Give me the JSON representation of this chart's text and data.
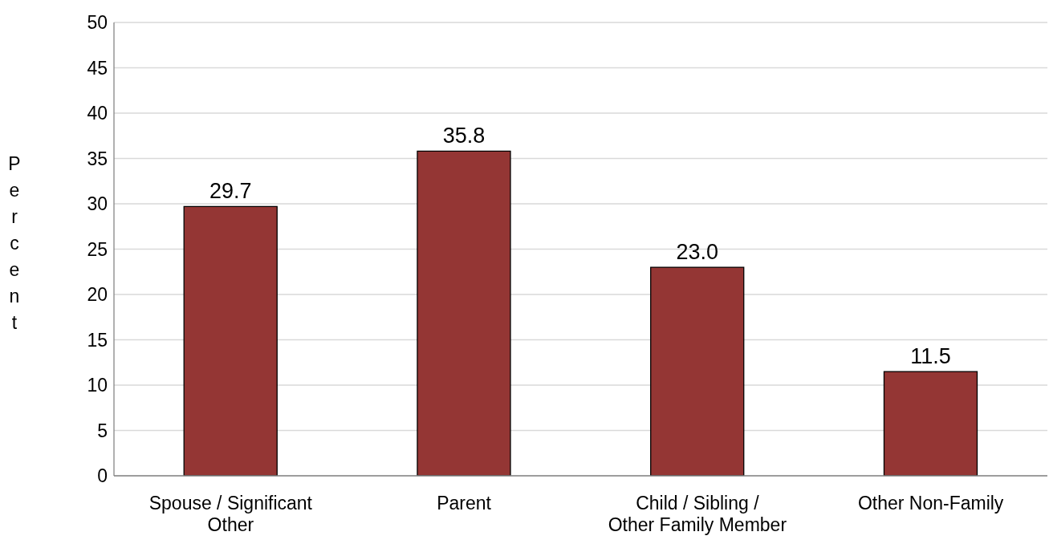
{
  "chart_data": {
    "type": "bar",
    "ylabel": "Percent",
    "categories": [
      "Spouse / Significant Other",
      "Parent",
      "Child / Sibling / Other Family Member",
      "Other Non-Family"
    ],
    "values": [
      29.7,
      35.8,
      23.0,
      11.5
    ],
    "value_labels": [
      "29.7",
      "35.8",
      "23.0",
      "11.5"
    ],
    "color": "#943634",
    "ylim": [
      0,
      50
    ],
    "yticks": [
      0,
      5,
      10,
      15,
      20,
      25,
      30,
      35,
      40,
      45,
      50
    ],
    "grid": "y",
    "legend": false
  }
}
